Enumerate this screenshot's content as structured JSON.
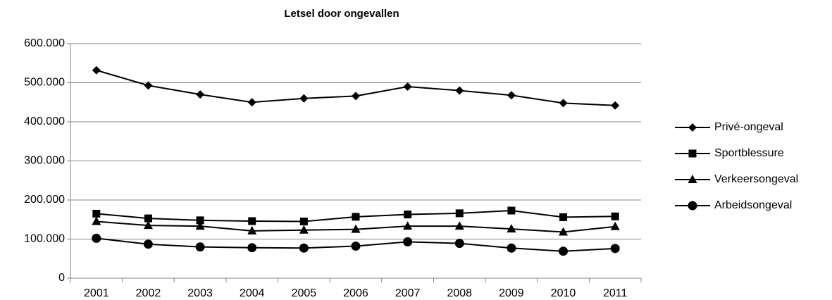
{
  "chart_data": {
    "type": "line",
    "title": "Letsel door ongevallen",
    "categories": [
      "2001",
      "2002",
      "2003",
      "2004",
      "2005",
      "2006",
      "2007",
      "2008",
      "2009",
      "2010",
      "2011"
    ],
    "series": [
      {
        "name": "Privé-ongeval",
        "color": "#000000",
        "marker": "diamond",
        "values": [
          532000,
          493000,
          470000,
          450000,
          460000,
          466000,
          490000,
          480000,
          468000,
          448000,
          442000
        ]
      },
      {
        "name": "Sportblessure",
        "color": "#000000",
        "marker": "square",
        "values": [
          165000,
          153000,
          148000,
          146000,
          145000,
          157000,
          163000,
          166000,
          173000,
          156000,
          158000
        ]
      },
      {
        "name": "Verkeersongeval",
        "color": "#000000",
        "marker": "triangle",
        "values": [
          145000,
          135000,
          133000,
          121000,
          123000,
          125000,
          133000,
          133000,
          126000,
          118000,
          132000
        ]
      },
      {
        "name": "Arbeidsongeval",
        "color": "#000000",
        "marker": "circle",
        "values": [
          102000,
          87000,
          80000,
          78000,
          77000,
          82000,
          93000,
          89000,
          77000,
          69000,
          76000
        ]
      }
    ],
    "ylim": [
      0,
      600000
    ],
    "yticks": [
      0,
      {
        "value": 100000,
        "label": "100.000"
      },
      {
        "value": 200000,
        "label": "200.000"
      },
      {
        "value": 300000,
        "label": "300.000"
      },
      {
        "value": 400000,
        "label": "400.000"
      },
      {
        "value": 500000,
        "label": "500.000"
      },
      {
        "value": 600000,
        "label": "600.000"
      }
    ],
    "grid": true,
    "legend": "right"
  }
}
